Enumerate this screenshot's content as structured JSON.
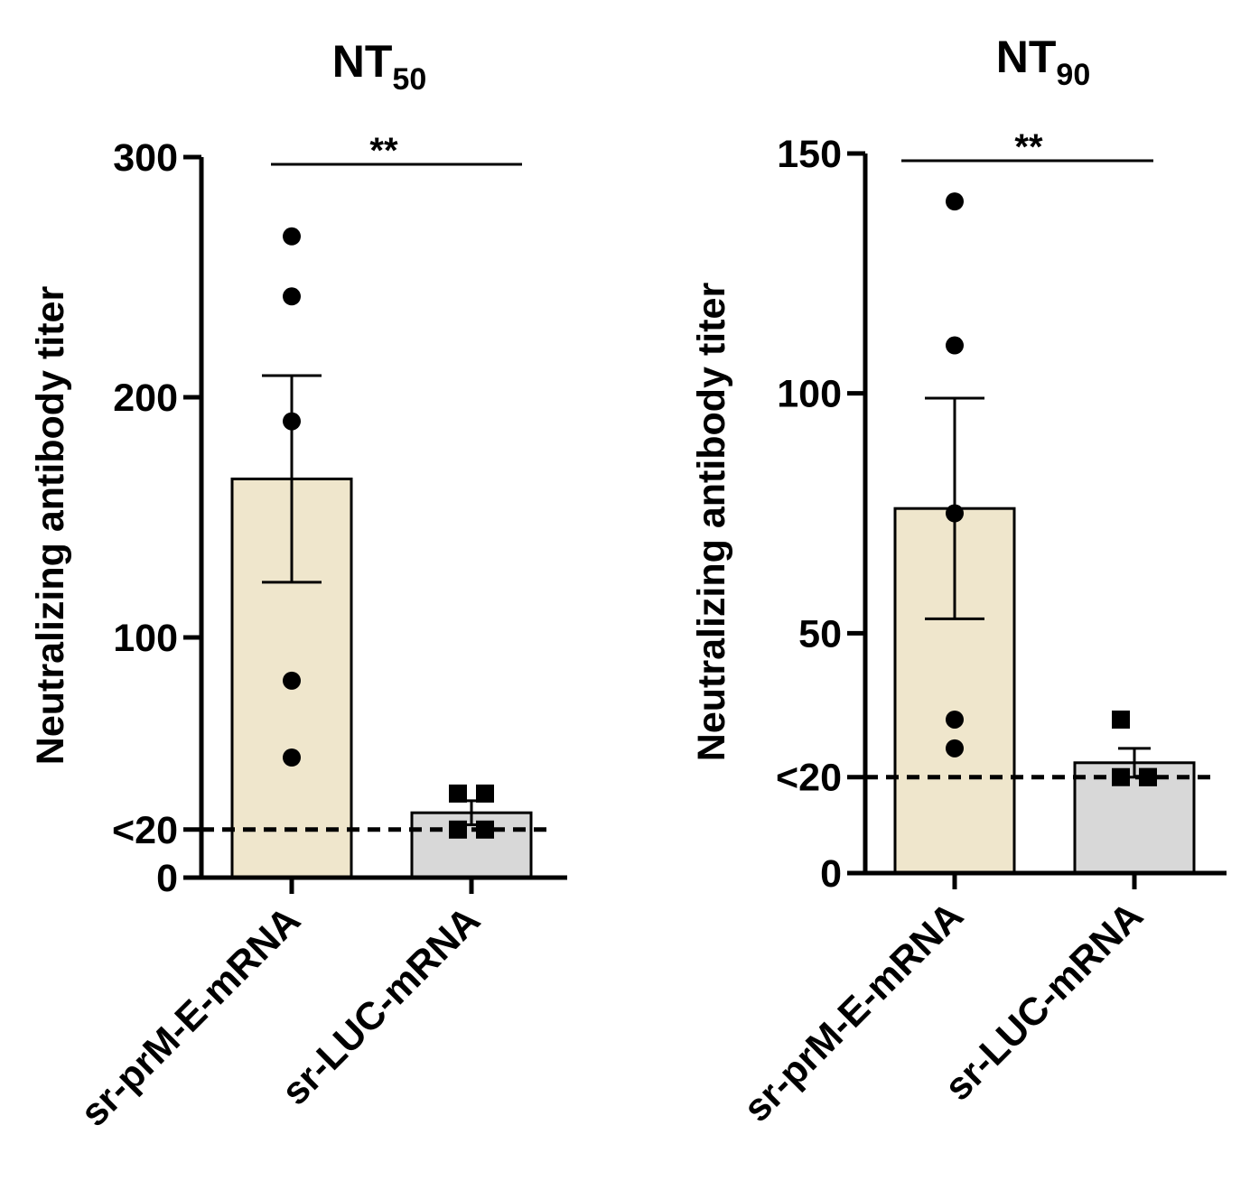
{
  "chart_data": [
    {
      "type": "bar",
      "title": "NT",
      "title_subscript": "50",
      "ylabel": "Neutralizing antibody titer",
      "ylim": [
        0,
        300
      ],
      "yticks": [
        0,
        20,
        100,
        200,
        300
      ],
      "ytick_labels": [
        "0",
        "<20",
        "100",
        "200",
        "300"
      ],
      "categories": [
        "sr-prM-E-mRNA",
        "sr-LUC-mRNA"
      ],
      "bar_colors": [
        "#efe6cc",
        "#d8d8d8"
      ],
      "values": [
        166,
        27
      ],
      "sem": [
        43,
        5
      ],
      "points": [
        [
          267,
          242,
          190,
          82,
          50
        ],
        [
          35,
          35,
          20,
          20
        ]
      ],
      "markers": [
        "circle",
        "square"
      ],
      "detection_limit": 20,
      "significance": "**"
    },
    {
      "type": "bar",
      "title": "NT",
      "title_subscript": "90",
      "ylabel": "Neutralizing antibody titer",
      "ylim": [
        0,
        150
      ],
      "yticks": [
        0,
        20,
        50,
        100,
        150
      ],
      "ytick_labels": [
        "0",
        "<20",
        "50",
        "100",
        "150"
      ],
      "categories": [
        "sr-prM-E-mRNA",
        "sr-LUC-mRNA"
      ],
      "bar_colors": [
        "#efe6cc",
        "#d8d8d8"
      ],
      "values": [
        76,
        23
      ],
      "sem": [
        23,
        3
      ],
      "points": [
        [
          140,
          110,
          75,
          32,
          26
        ],
        [
          32,
          20,
          20,
          20
        ]
      ],
      "markers": [
        "circle",
        "square"
      ],
      "detection_limit": 20,
      "significance": "**"
    }
  ]
}
